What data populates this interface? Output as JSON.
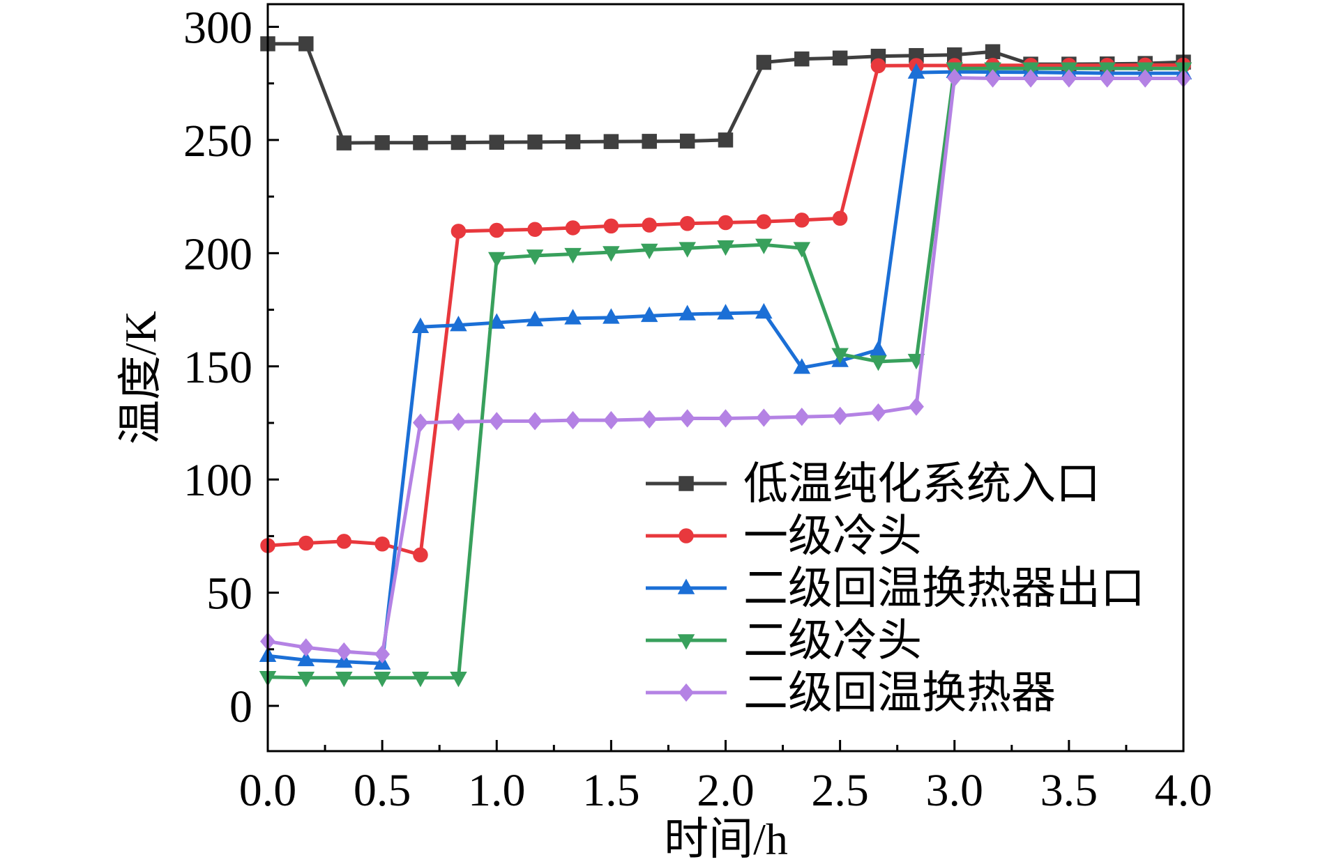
{
  "chart_data": {
    "type": "line",
    "xlabel": "时间/h",
    "ylabel": "温度/K",
    "xlim": [
      0,
      4
    ],
    "ylim": [
      -20,
      310
    ],
    "xticks": [
      "0.0",
      "0.5",
      "1.0",
      "1.5",
      "2.0",
      "2.5",
      "3.0",
      "3.5",
      "4.0"
    ],
    "yticks": [
      "0",
      "50",
      "100",
      "150",
      "200",
      "250",
      "300"
    ],
    "grid": false,
    "legend": "right",
    "x": [
      0,
      0.167,
      0.333,
      0.5,
      0.667,
      0.833,
      1.0,
      1.167,
      1.333,
      1.5,
      1.667,
      1.833,
      2.0,
      2.167,
      2.333,
      2.5,
      2.667,
      2.833,
      3.0,
      3.167,
      3.333,
      3.5,
      3.667,
      3.833,
      4.0
    ],
    "series": [
      {
        "name": "低温纯化系统入口",
        "color": "#3f3f3f",
        "marker": "square",
        "values": [
          292.5,
          292.5,
          248.7,
          248.8,
          248.8,
          248.9,
          249.0,
          249.1,
          249.2,
          249.3,
          249.4,
          249.5,
          250.0,
          284.3,
          285.8,
          286.2,
          287.0,
          287.3,
          287.6,
          289.0,
          283.5,
          283.5,
          283.6,
          283.8,
          284.4
        ]
      },
      {
        "name": "一级冷头",
        "color": "#e8383d",
        "marker": "circle",
        "values": [
          70.8,
          71.9,
          72.7,
          71.5,
          66.7,
          209.7,
          210.1,
          210.5,
          211.2,
          212.0,
          212.4,
          213.1,
          213.5,
          213.9,
          214.6,
          215.4,
          282.8,
          282.9,
          282.9,
          283.0,
          283.0,
          283.0,
          283.0,
          283.1,
          283.1
        ]
      },
      {
        "name": "二级回温换热器出口",
        "color": "#1b6fd6",
        "marker": "triangle-up",
        "values": [
          22.1,
          20.2,
          19.5,
          18.7,
          167.4,
          168.2,
          169.3,
          170.4,
          171.2,
          171.5,
          172.3,
          173.0,
          173.4,
          173.8,
          149.4,
          152.4,
          157.3,
          279.8,
          280.1,
          280.0,
          279.9,
          279.7,
          279.5,
          279.5,
          279.5
        ]
      },
      {
        "name": "二级冷头",
        "color": "#38a05c",
        "marker": "triangle-down",
        "values": [
          12.7,
          12.4,
          12.4,
          12.4,
          12.4,
          12.4,
          197.8,
          198.9,
          199.6,
          200.4,
          201.5,
          202.2,
          203.0,
          203.7,
          202.2,
          155.4,
          152.1,
          152.8,
          281.6,
          281.6,
          281.6,
          281.6,
          281.6,
          281.6,
          281.6
        ]
      },
      {
        "name": "二级回温换热器",
        "color": "#b482e4",
        "marker": "diamond",
        "values": [
          28.5,
          25.8,
          24.0,
          22.8,
          125.1,
          125.5,
          125.8,
          125.8,
          126.2,
          126.2,
          126.6,
          127.0,
          127.0,
          127.3,
          127.7,
          128.1,
          129.6,
          132.2,
          277.5,
          277.2,
          277.2,
          277.2,
          277.2,
          277.2,
          277.2
        ]
      }
    ]
  }
}
